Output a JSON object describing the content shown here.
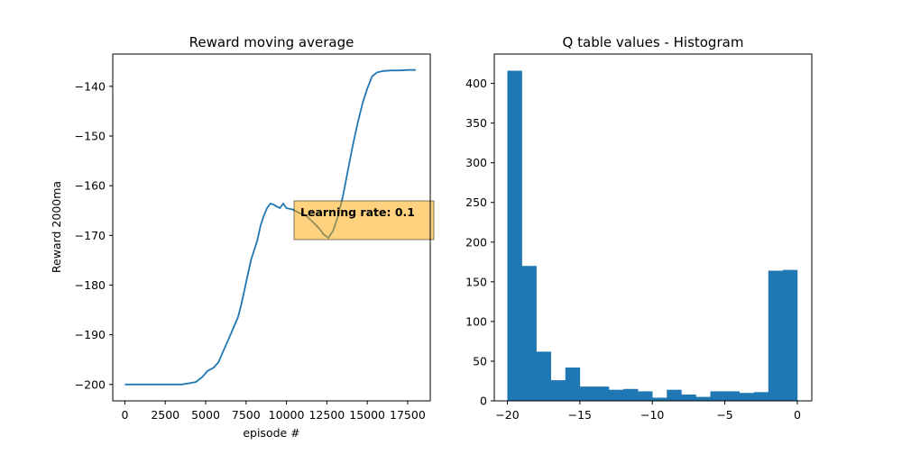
{
  "chart_data": [
    {
      "type": "line",
      "title": "Reward moving average",
      "xlabel": "episode #",
      "ylabel": "Reward 2000ma",
      "xlim": [
        -750,
        18900
      ],
      "ylim": [
        -203.3,
        -133.5
      ],
      "xticks": [
        0,
        2500,
        5000,
        7500,
        10000,
        12500,
        15000,
        17500
      ],
      "yticks": [
        -200,
        -190,
        -180,
        -170,
        -160,
        -150,
        -140
      ],
      "series": [
        {
          "color": "#1f77b4",
          "x": [
            0,
            3500,
            3900,
            4400,
            4800,
            5100,
            5500,
            5800,
            6000,
            6200,
            6400,
            6600,
            6800,
            7000,
            7200,
            7400,
            7600,
            7800,
            8000,
            8200,
            8400,
            8600,
            8800,
            9000,
            9200,
            9400,
            9600,
            9800,
            10000,
            10400,
            10800,
            11200,
            11600,
            12000,
            12300,
            12600,
            12900,
            13200,
            13500,
            13800,
            14100,
            14400,
            14700,
            15000,
            15300,
            15600,
            16000,
            16500,
            17000,
            17500,
            18000
          ],
          "y": [
            -200,
            -200,
            -199.8,
            -199.5,
            -198.5,
            -197.3,
            -196.6,
            -195.5,
            -194,
            -192.5,
            -191,
            -189.5,
            -188,
            -186.5,
            -184,
            -181,
            -178,
            -175,
            -173,
            -171,
            -168,
            -166,
            -164.5,
            -163.6,
            -163.8,
            -164.2,
            -164.5,
            -163.6,
            -164.5,
            -164.8,
            -165.5,
            -166,
            -167.2,
            -168.5,
            -169.8,
            -170.5,
            -169,
            -166,
            -162,
            -157,
            -152,
            -147.5,
            -143.5,
            -140.5,
            -138,
            -137.2,
            -136.9,
            -136.8,
            -136.8,
            -136.7,
            -136.7
          ]
        }
      ],
      "annotation": {
        "text": "Learning rate: 0.1",
        "facecolor": "#ffa500",
        "alpha": 0.5
      }
    },
    {
      "type": "bar",
      "subtype": "histogram",
      "title": "Q table values - Histogram",
      "xlabel": "",
      "ylabel": "",
      "xlim": [
        -20.9,
        1.0
      ],
      "ylim": [
        0,
        437
      ],
      "xticks": [
        -20,
        -15,
        -10,
        -5,
        0
      ],
      "yticks": [
        0,
        50,
        100,
        150,
        200,
        250,
        300,
        350,
        400
      ],
      "bin_start": -20,
      "bin_width": 1,
      "values": [
        416,
        170,
        62,
        26,
        42,
        18,
        18,
        14,
        15,
        12,
        4,
        14,
        8,
        5,
        12,
        12,
        10,
        11,
        164,
        165
      ],
      "color": "#1f77b4"
    }
  ]
}
